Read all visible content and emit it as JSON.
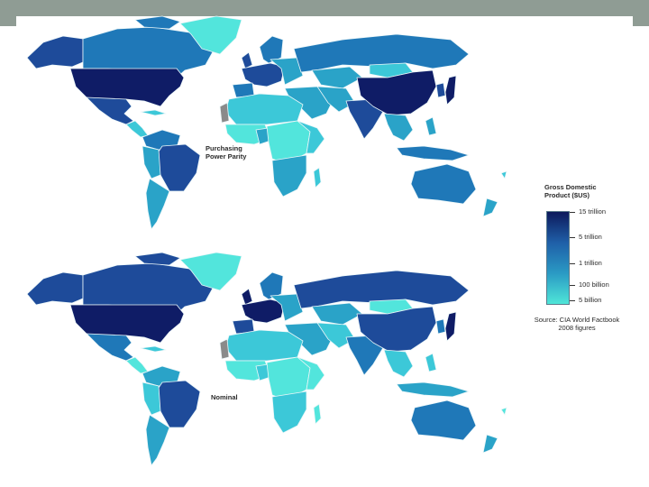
{
  "maps": [
    {
      "label": "Purchasing Power Parity"
    },
    {
      "label": "Nominal"
    }
  ],
  "legend": {
    "title": "Gross Domestic Product ($US)",
    "ticks": [
      "15 trillion",
      "5 trillion",
      "1 trillion",
      "100 billion",
      "5 billion"
    ],
    "color_high": "#0d1a5c",
    "color_low": "#4fe6d8",
    "source_line1": "Source: CIA World Factbook",
    "source_line2": "2008 figures"
  },
  "colors": {
    "very_high": "#0f1c66",
    "high": "#1e4b9a",
    "upper_mid": "#1f78b8",
    "mid": "#2aa3c8",
    "low": "#3cc8d8",
    "very_low": "#52e5dc",
    "no_data": "#8a8a8a",
    "ocean": "#ffffff",
    "border": "#eaf6f8"
  }
}
